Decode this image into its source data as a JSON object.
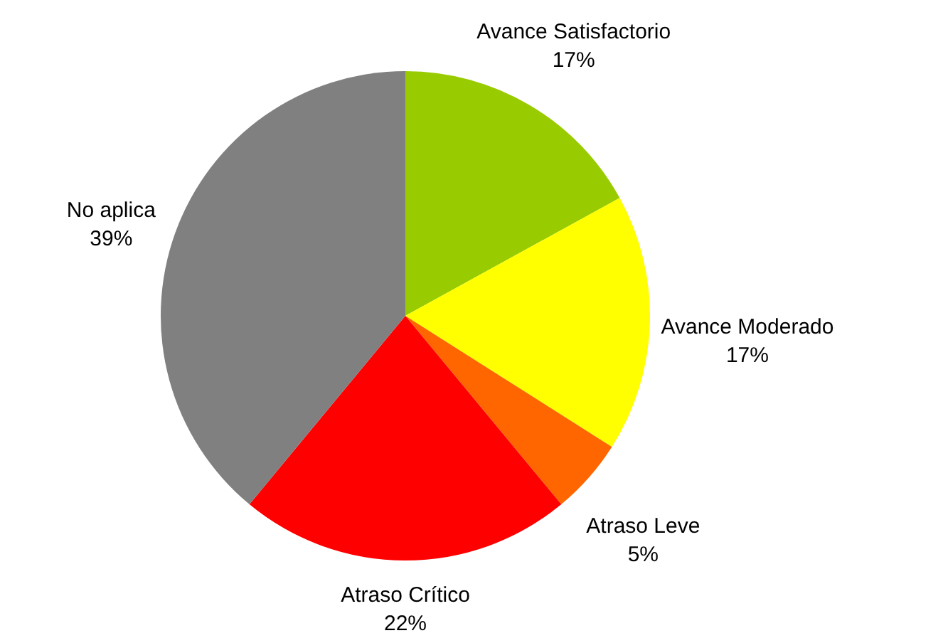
{
  "chart_data": {
    "type": "pie",
    "categories": [
      "Avance Satisfactorio",
      "Avance Moderado",
      "Atraso Leve",
      "Atraso Crítico",
      "No aplica"
    ],
    "values": [
      17,
      17,
      5,
      22,
      39
    ],
    "value_labels": [
      "17%",
      "17%",
      "5%",
      "22%",
      "39%"
    ],
    "colors": [
      "#99cc00",
      "#ffff00",
      "#ff6600",
      "#ff0000",
      "#808080"
    ]
  }
}
